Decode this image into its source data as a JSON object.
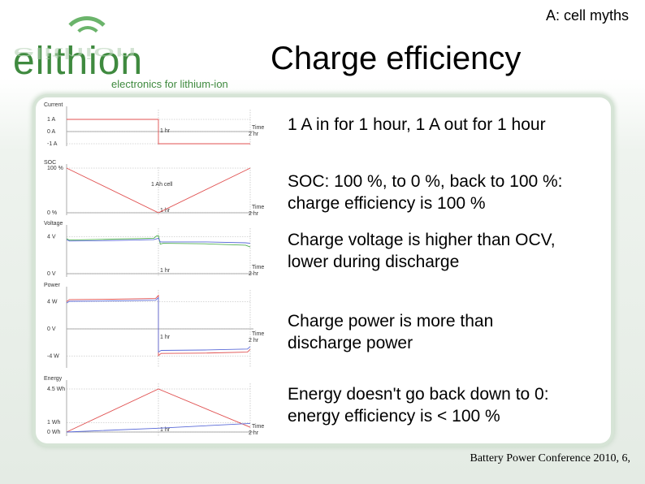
{
  "header": {
    "section": "A: cell myths"
  },
  "title": "Charge efficiency",
  "logo": {
    "word": "elithion",
    "tagline": "electronics for lithium-ion"
  },
  "bullets": [
    "1 A in for 1 hour, 1 A out for 1 hour",
    "SOC: 100 %, to 0 %, back to 100 %: charge efficiency is 100 %",
    "Charge voltage is higher than OCV, lower during discharge",
    "Charge power is more than discharge power",
    "Energy doesn't go back down to 0: energy efficiency is < 100 %"
  ],
  "footer": "Battery Power Conference 2010, 6,",
  "colors": {
    "brand": "#3f8a3f",
    "accent": "#6bb46b",
    "red": "#e05050",
    "blue": "#5a6ad8",
    "green": "#50b050",
    "grid": "#b0b0b0"
  },
  "chart_data": [
    {
      "type": "line",
      "ylabel": "Current",
      "xlabel": "Time",
      "ticks_y": [
        "1 A",
        "0 A",
        "-1 A"
      ],
      "ticks_x": [
        "1 hr",
        "2 hr"
      ],
      "series": [
        {
          "color": "red",
          "x": [
            0,
            1,
            1,
            2
          ],
          "y": [
            1,
            1,
            -1,
            -1
          ]
        }
      ],
      "ylim": [
        -1,
        1
      ]
    },
    {
      "type": "line",
      "ylabel": "SOC",
      "xlabel": "Time",
      "ticks_y": [
        "100 %",
        "0 %"
      ],
      "ticks_x": [
        "1 hr",
        "2 hr"
      ],
      "annotation": "1 Ah cell",
      "series": [
        {
          "color": "red",
          "x": [
            0,
            1,
            2
          ],
          "y": [
            100,
            0,
            100
          ]
        }
      ],
      "ylim": [
        0,
        100
      ]
    },
    {
      "type": "line",
      "ylabel": "Voltage",
      "xlabel": "Time",
      "ticks_y": [
        "4 V",
        "0 V"
      ],
      "ticks_x": [
        "1 hr",
        "2 hr"
      ],
      "series": [
        {
          "color": "green",
          "x": [
            0,
            0.03,
            0.5,
            0.95,
            0.98,
            1.0,
            1.02,
            1.05,
            1.5,
            1.95,
            2.0
          ],
          "y": [
            3.8,
            3.65,
            3.75,
            3.85,
            4.1,
            4.15,
            3.2,
            3.3,
            3.25,
            3.1,
            2.9
          ]
        },
        {
          "color": "blue",
          "x": [
            0,
            0.03,
            0.5,
            0.95,
            1.0,
            1.02,
            1.5,
            1.95,
            2.0
          ],
          "y": [
            3.7,
            3.55,
            3.6,
            3.7,
            3.85,
            3.45,
            3.45,
            3.35,
            3.3
          ]
        }
      ],
      "ylim": [
        0,
        4.5
      ]
    },
    {
      "type": "line",
      "ylabel": "Power",
      "xlabel": "Time",
      "ticks_y": [
        "4 W",
        "0 V",
        "-4 W"
      ],
      "ticks_x": [
        "1 hr",
        "2 hr"
      ],
      "series": [
        {
          "color": "red",
          "x": [
            0,
            0.03,
            0.5,
            0.97,
            1.0,
            1.0,
            1.03,
            1.5,
            1.97,
            2.0
          ],
          "y": [
            4.0,
            4.3,
            4.35,
            4.45,
            4.9,
            -3.9,
            -3.6,
            -3.55,
            -3.4,
            -3.0
          ]
        },
        {
          "color": "blue",
          "x": [
            0,
            0.03,
            0.5,
            0.97,
            1.0,
            1.0,
            1.03,
            1.5,
            1.97,
            2.0
          ],
          "y": [
            3.8,
            4.05,
            4.1,
            4.2,
            4.6,
            -3.4,
            -3.15,
            -3.1,
            -2.95,
            -2.6
          ]
        }
      ],
      "ylim": [
        -5,
        5
      ]
    },
    {
      "type": "line",
      "ylabel": "Energy",
      "xlabel": "Time",
      "ticks_y": [
        "4.5 Wh",
        "1 Wh",
        "0 Wh"
      ],
      "ticks_x": [
        "1 hr",
        "2 hr"
      ],
      "series": [
        {
          "color": "red",
          "x": [
            0,
            1,
            2
          ],
          "y": [
            0,
            4.5,
            0.5
          ]
        },
        {
          "color": "blue",
          "x": [
            0,
            1,
            2
          ],
          "y": [
            0,
            0.4,
            0.9
          ]
        }
      ],
      "ylim": [
        0,
        4.5
      ]
    }
  ]
}
